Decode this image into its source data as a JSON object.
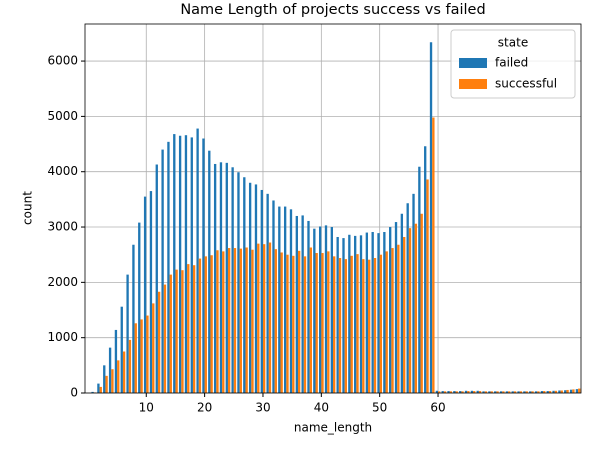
{
  "chart_data": {
    "type": "grouped_bar",
    "title": "Name Length of projects success vs failed",
    "x_label": "name_length",
    "y_label": "count",
    "x": [
      1,
      2,
      3,
      4,
      5,
      6,
      7,
      8,
      9,
      10,
      11,
      12,
      13,
      14,
      15,
      16,
      17,
      18,
      19,
      20,
      21,
      22,
      23,
      24,
      25,
      26,
      27,
      28,
      29,
      30,
      31,
      32,
      33,
      34,
      35,
      36,
      37,
      38,
      39,
      40,
      41,
      42,
      43,
      44,
      45,
      46,
      47,
      48,
      49,
      50,
      51,
      52,
      53,
      54,
      55,
      56,
      57,
      58,
      59,
      60,
      61,
      62,
      63,
      64,
      65,
      66,
      67,
      68,
      69,
      70,
      71,
      72,
      73,
      74,
      75,
      76,
      77,
      78,
      79,
      80,
      81,
      82,
      83,
      84
    ],
    "series": [
      {
        "name": "failed",
        "color": "#1f77b4",
        "values": [
          20,
          170,
          500,
          820,
          1140,
          1560,
          2140,
          2680,
          3080,
          3550,
          3650,
          4130,
          4400,
          4540,
          4680,
          4650,
          4660,
          4620,
          4780,
          4600,
          4380,
          4140,
          4170,
          4160,
          4080,
          3990,
          3900,
          3800,
          3770,
          3670,
          3600,
          3480,
          3370,
          3370,
          3320,
          3200,
          3210,
          3110,
          2970,
          3010,
          3030,
          3000,
          2820,
          2800,
          2860,
          2840,
          2850,
          2900,
          2910,
          2890,
          2910,
          3000,
          3090,
          3240,
          3430,
          3600,
          4090,
          4460,
          6340,
          40,
          35,
          35,
          35,
          35,
          40,
          40,
          40,
          30,
          30,
          30,
          30,
          30,
          30,
          30,
          30,
          30,
          30,
          35,
          35,
          40,
          45,
          50,
          60,
          70
        ]
      },
      {
        "name": "successful",
        "color": "#ff7f0e",
        "values": [
          10,
          110,
          310,
          430,
          590,
          750,
          960,
          1260,
          1330,
          1400,
          1620,
          1830,
          1960,
          2140,
          2230,
          2220,
          2330,
          2310,
          2430,
          2470,
          2490,
          2580,
          2560,
          2620,
          2620,
          2610,
          2630,
          2590,
          2700,
          2690,
          2720,
          2600,
          2540,
          2500,
          2480,
          2570,
          2470,
          2630,
          2530,
          2530,
          2560,
          2470,
          2440,
          2420,
          2480,
          2510,
          2420,
          2410,
          2440,
          2500,
          2560,
          2620,
          2680,
          2820,
          2980,
          3060,
          3240,
          3860,
          4980,
          30,
          30,
          30,
          30,
          30,
          35,
          35,
          35,
          30,
          30,
          30,
          30,
          30,
          30,
          30,
          30,
          30,
          30,
          35,
          35,
          40,
          45,
          55,
          65,
          80
        ]
      }
    ],
    "legend_title": "state",
    "legend_loc": "upper right",
    "xlim": [
      -0.5,
      84.5
    ],
    "xticks": [
      10,
      20,
      30,
      40,
      50,
      60
    ],
    "ylim": [
      0,
      6670
    ],
    "yticks": [
      0,
      1000,
      2000,
      3000,
      4000,
      5000,
      6000
    ],
    "grid": true
  }
}
